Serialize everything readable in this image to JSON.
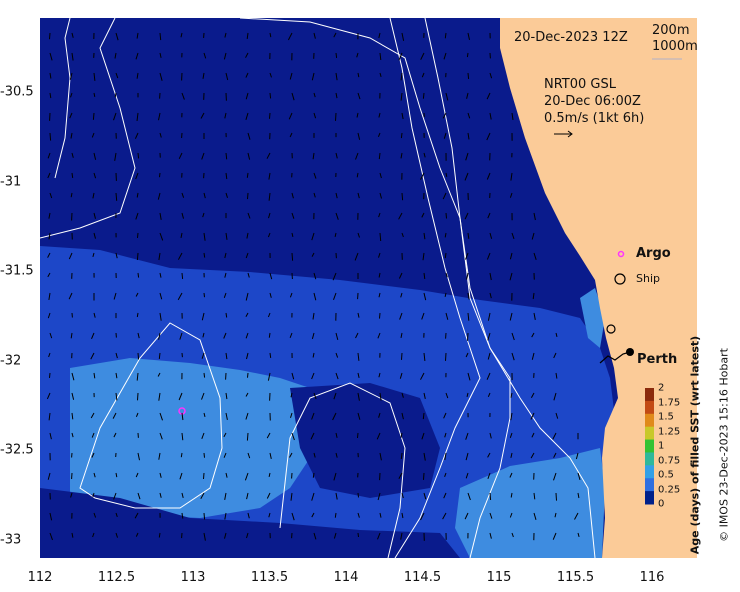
{
  "map": {
    "header_date": "20-Dec-2023 12Z",
    "depth_contours": [
      "200m",
      "1000m"
    ],
    "currents": {
      "source": "NRT00 GSL",
      "time": "20-Dec 06:00Z",
      "scale": "0.5m/s (1kt 6h)"
    },
    "legend": {
      "argo": "Argo",
      "ship": "Ship"
    },
    "place": "Perth",
    "x_ticks": [
      "112",
      "112.5",
      "113",
      "113.5",
      "114",
      "114.5",
      "115",
      "115.5",
      "116"
    ],
    "y_ticks": [
      "-30.5",
      "-31",
      "-31.5",
      "-32",
      "-32.5",
      "-33"
    ],
    "x_tick_values": [
      112,
      112.5,
      113,
      113.5,
      114,
      114.5,
      115,
      115.5,
      116
    ],
    "y_tick_values": [
      -30.5,
      -31,
      -31.5,
      -32,
      -32.5,
      -33
    ],
    "colorbar": {
      "title": "Age (days) of filled SST (wrt latest)",
      "labels": [
        "2",
        "1.75",
        "1.5",
        "1.25",
        "1",
        "0.75",
        "0.5",
        "0.25",
        "0"
      ],
      "colors": [
        "#8b2a0c",
        "#c24a14",
        "#e08a1a",
        "#c8c82a",
        "#33c233",
        "#2fb89a",
        "#33a0e6",
        "#2f6fe0",
        "#00208a"
      ]
    },
    "credit": "© IMOS 23-Dec-2023 15:16 Hobart",
    "colors": {
      "ocean_deep": "#0a1b8c",
      "ocean_mid": "#1d47c8",
      "ocean_light": "#3e8ce0",
      "land": "#fbcb98",
      "contour": "#ffffff",
      "argo": "#ff33ff"
    }
  }
}
